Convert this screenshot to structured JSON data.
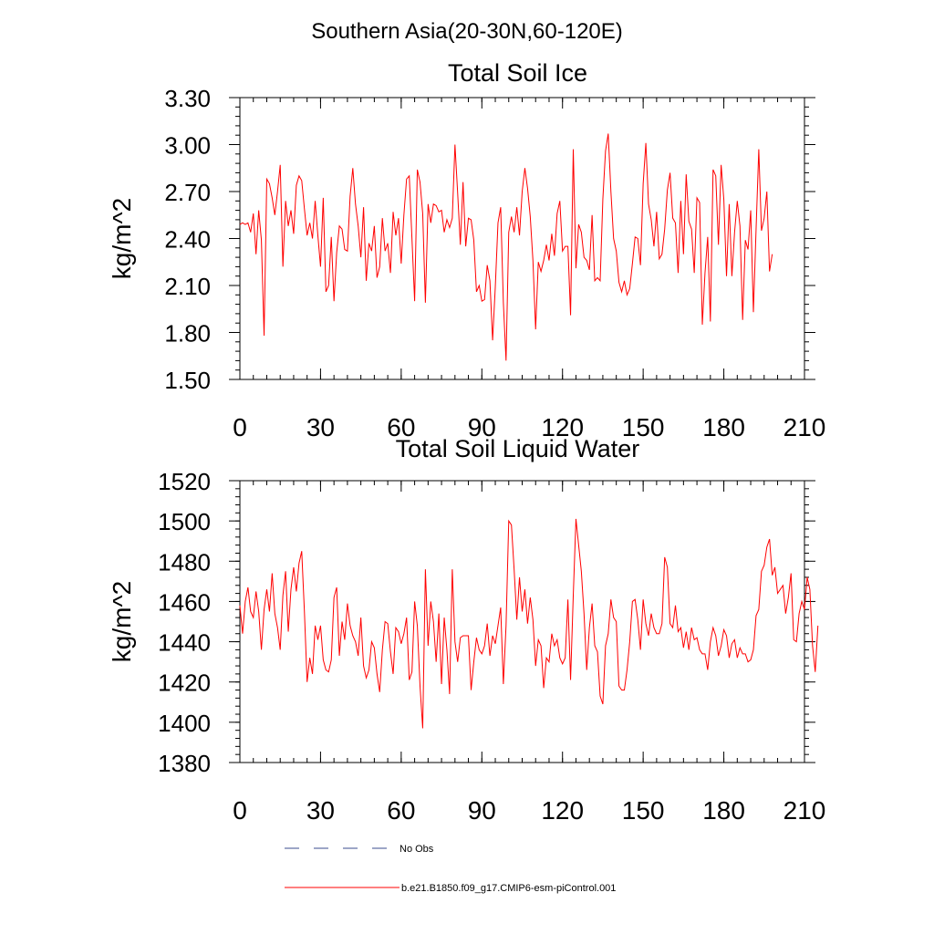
{
  "suptitle": "Southern Asia(20-30N,60-120E)",
  "chart_data": [
    {
      "type": "line",
      "title": "Total Soil Ice",
      "xlabel": "",
      "ylabel": "kg/m^2",
      "xlim": [
        0,
        210
      ],
      "ylim": [
        1.5,
        3.3
      ],
      "xticks": [
        "0",
        "30",
        "60",
        "90",
        "120",
        "150",
        "180",
        "210"
      ],
      "yticks": [
        "1.50",
        "1.80",
        "2.10",
        "2.40",
        "2.70",
        "3.00",
        "3.30"
      ],
      "series": [
        {
          "name": "b.e21.B1850.f09_g17.CMIP6-esm-piControl.001",
          "color": "#ff0000",
          "values": [
            2.49,
            2.5,
            2.49,
            2.5,
            2.44,
            2.56,
            2.3,
            2.58,
            2.39,
            1.78,
            2.78,
            2.75,
            2.66,
            2.55,
            2.7,
            2.87,
            2.22,
            2.64,
            2.48,
            2.58,
            2.43,
            2.74,
            2.8,
            2.77,
            2.59,
            2.42,
            2.5,
            2.4,
            2.64,
            2.42,
            2.22,
            2.66,
            2.06,
            2.1,
            2.41,
            2.0,
            2.31,
            2.48,
            2.46,
            2.33,
            2.32,
            2.67,
            2.85,
            2.62,
            2.48,
            2.28,
            2.6,
            2.13,
            2.37,
            2.32,
            2.48,
            2.15,
            2.22,
            2.53,
            2.32,
            2.37,
            2.18,
            2.57,
            2.42,
            2.53,
            2.24,
            2.55,
            2.78,
            2.8,
            2.4,
            2.0,
            2.84,
            2.76,
            2.56,
            1.99,
            2.62,
            2.5,
            2.62,
            2.61,
            2.57,
            2.58,
            2.44,
            2.52,
            2.47,
            2.53,
            3.0,
            2.69,
            2.36,
            2.76,
            2.35,
            2.53,
            2.52,
            2.39,
            2.06,
            2.1,
            2.0,
            2.01,
            2.23,
            2.13,
            1.75,
            2.09,
            2.5,
            2.6,
            1.99,
            1.62,
            2.44,
            2.54,
            2.44,
            2.6,
            2.42,
            2.7,
            2.85,
            2.72,
            2.54,
            2.26,
            1.82,
            2.25,
            2.19,
            2.26,
            2.36,
            2.26,
            2.43,
            2.29,
            2.56,
            2.64,
            2.32,
            2.35,
            2.35,
            1.91,
            2.97,
            2.21,
            2.49,
            2.44,
            2.28,
            2.26,
            2.2,
            2.55,
            2.13,
            2.15,
            2.13,
            2.65,
            2.96,
            3.07,
            2.7,
            2.4,
            2.32,
            2.12,
            2.06,
            2.13,
            2.04,
            2.08,
            2.24,
            2.41,
            2.4,
            2.23,
            2.75,
            3.01,
            2.62,
            2.52,
            2.35,
            2.57,
            2.27,
            2.3,
            2.46,
            2.71,
            2.82,
            2.53,
            2.5,
            2.18,
            2.64,
            2.3,
            2.81,
            2.51,
            2.46,
            2.18,
            2.66,
            2.63,
            1.85,
            2.18,
            2.41,
            1.87,
            2.84,
            2.8,
            2.36,
            2.87,
            2.65,
            2.16,
            2.62,
            2.16,
            2.44,
            2.64,
            2.48,
            1.88,
            2.39,
            2.33,
            2.58,
            1.93,
            2.46,
            2.97,
            2.45,
            2.53,
            2.7,
            2.19,
            2.3
          ]
        }
      ]
    },
    {
      "type": "line",
      "title": "Total Soil Liquid Water",
      "xlabel": "",
      "ylabel": "kg/m^2",
      "xlim": [
        0,
        210
      ],
      "ylim": [
        1380,
        1520
      ],
      "xticks": [
        "0",
        "30",
        "60",
        "90",
        "120",
        "150",
        "180",
        "210"
      ],
      "yticks": [
        "1380",
        "1400",
        "1420",
        "1440",
        "1460",
        "1480",
        "1500",
        "1520"
      ],
      "series": [
        {
          "name": "b.e21.B1850.f09_g17.CMIP6-esm-piControl.001",
          "color": "#ff0000",
          "values": [
            1458,
            1444,
            1460,
            1467,
            1455,
            1452,
            1465,
            1455,
            1436,
            1456,
            1466,
            1455,
            1474,
            1454,
            1447,
            1436,
            1463,
            1475,
            1445,
            1466,
            1477,
            1465,
            1479,
            1485,
            1455,
            1420,
            1432,
            1424,
            1448,
            1441,
            1448,
            1431,
            1426,
            1425,
            1431,
            1462,
            1467,
            1433,
            1450,
            1441,
            1459,
            1448,
            1443,
            1440,
            1433,
            1452,
            1428,
            1422,
            1426,
            1440,
            1437,
            1424,
            1415,
            1436,
            1450,
            1449,
            1435,
            1424,
            1447,
            1445,
            1439,
            1444,
            1452,
            1421,
            1425,
            1460,
            1448,
            1418,
            1397,
            1476,
            1438,
            1460,
            1450,
            1430,
            1454,
            1419,
            1452,
            1436,
            1414,
            1476,
            1440,
            1430,
            1442,
            1443,
            1443,
            1443,
            1416,
            1430,
            1442,
            1436,
            1434,
            1438,
            1449,
            1433,
            1443,
            1439,
            1448,
            1457,
            1419,
            1448,
            1500,
            1498,
            1476,
            1451,
            1472,
            1455,
            1466,
            1449,
            1462,
            1451,
            1428,
            1441,
            1438,
            1417,
            1432,
            1430,
            1444,
            1438,
            1441,
            1432,
            1429,
            1432,
            1461,
            1421,
            1463,
            1501,
            1488,
            1475,
            1454,
            1426,
            1447,
            1459,
            1438,
            1435,
            1413,
            1409,
            1438,
            1444,
            1461,
            1452,
            1450,
            1418,
            1416,
            1416,
            1426,
            1440,
            1460,
            1461,
            1451,
            1436,
            1461,
            1449,
            1443,
            1454,
            1447,
            1444,
            1444,
            1449,
            1482,
            1477,
            1449,
            1447,
            1458,
            1445,
            1447,
            1437,
            1445,
            1436,
            1447,
            1441,
            1442,
            1436,
            1434,
            1434,
            1426,
            1440,
            1447,
            1443,
            1433,
            1438,
            1446,
            1443,
            1432,
            1439,
            1441,
            1432,
            1437,
            1434,
            1434,
            1430,
            1431,
            1436,
            1453,
            1456,
            1475,
            1478,
            1487,
            1491,
            1473,
            1477,
            1464,
            1466,
            1468,
            1454,
            1462,
            1474,
            1441,
            1440,
            1454,
            1460,
            1456,
            1472,
            1466,
            1438,
            1425,
            1448
          ]
        }
      ]
    }
  ],
  "legend": {
    "items": [
      {
        "label": "No Obs",
        "style": "dashed",
        "color": "#3b4d8f"
      },
      {
        "label": "b.e21.B1850.f09_g17.CMIP6-esm-piControl.001",
        "style": "solid",
        "color": "#ff0000"
      }
    ]
  }
}
